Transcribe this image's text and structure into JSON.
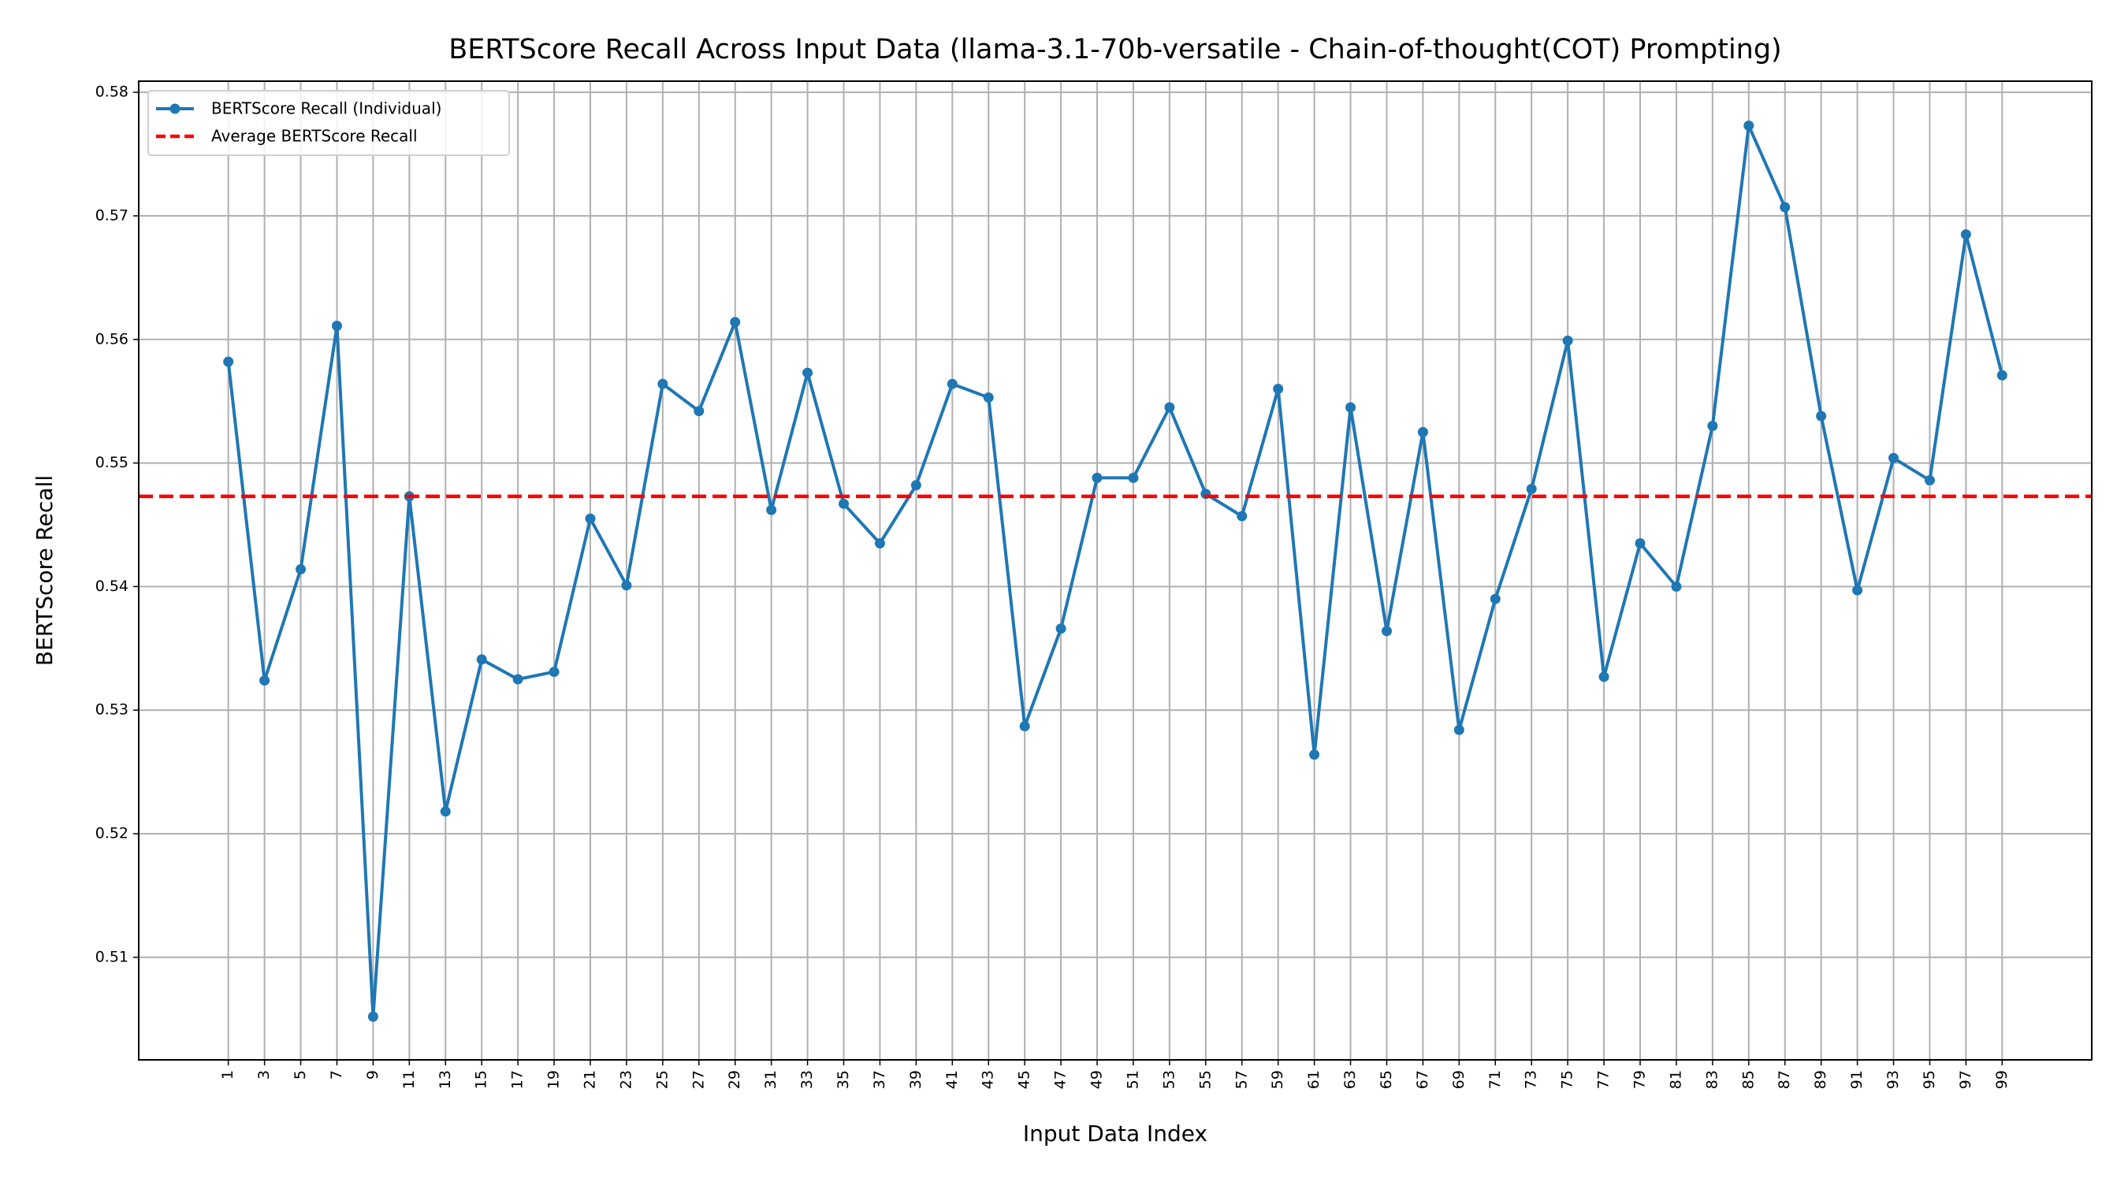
{
  "chart_data": {
    "type": "line",
    "title": "BERTScore Recall Across Input Data (llama-3.1-70b-versatile - Chain-of-thought(COT) Prompting)",
    "xlabel": "Input Data Index",
    "ylabel": "BERTScore Recall",
    "x": [
      1,
      3,
      5,
      7,
      9,
      11,
      13,
      15,
      17,
      19,
      21,
      23,
      25,
      27,
      29,
      31,
      33,
      35,
      37,
      39,
      41,
      43,
      45,
      47,
      49,
      51,
      53,
      55,
      57,
      59,
      61,
      63,
      65,
      67,
      69,
      71,
      73,
      75,
      77,
      79,
      81,
      83,
      85,
      87,
      89,
      91,
      93,
      95,
      97,
      99
    ],
    "series": [
      {
        "name": "BERTScore Recall (Individual)",
        "color": "#1f77b4",
        "values": [
          0.5582,
          0.5324,
          0.5414,
          0.5611,
          0.5052,
          0.5473,
          0.5218,
          0.5341,
          0.5325,
          0.5331,
          0.5455,
          0.5401,
          0.5564,
          0.5542,
          0.5614,
          0.5462,
          0.5573,
          0.5467,
          0.5435,
          0.5482,
          0.5564,
          0.5553,
          0.5287,
          0.5366,
          0.5488,
          0.5488,
          0.5545,
          0.5475,
          0.5457,
          0.556,
          0.5264,
          0.5545,
          0.5364,
          0.5525,
          0.5284,
          0.539,
          0.5479,
          0.5599,
          0.5327,
          0.5435,
          0.54,
          0.553,
          0.5773,
          0.5707,
          0.5538,
          0.5397,
          0.5504,
          0.5486,
          0.5685,
          0.5571
        ]
      }
    ],
    "reference_line": {
      "name": "Average BERTScore Recall",
      "color": "#ff0000",
      "value": 0.5473,
      "style": "dashed"
    },
    "xlim": [
      -3.95,
      103.95
    ],
    "xticks": [
      1,
      3,
      5,
      7,
      9,
      11,
      13,
      15,
      17,
      19,
      21,
      23,
      25,
      27,
      29,
      31,
      33,
      35,
      37,
      39,
      41,
      43,
      45,
      47,
      49,
      51,
      53,
      55,
      57,
      59,
      61,
      63,
      65,
      67,
      69,
      71,
      73,
      75,
      77,
      79,
      81,
      83,
      85,
      87,
      89,
      91,
      93,
      95,
      97,
      99
    ],
    "ylim": [
      0.5017,
      0.5809
    ],
    "yticks": [
      0.51,
      0.52,
      0.53,
      0.54,
      0.55,
      0.56,
      0.57,
      0.58
    ],
    "grid": true,
    "legend": "upper left"
  }
}
